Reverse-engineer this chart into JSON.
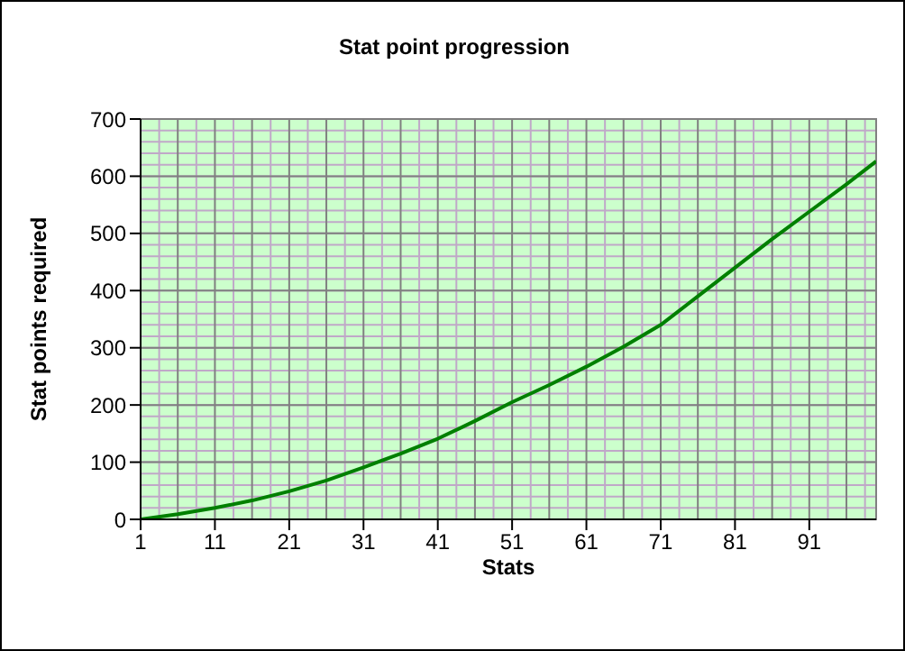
{
  "chart_data": {
    "type": "line",
    "title": "Stat point progression",
    "xlabel": "Stats",
    "ylabel": "Stat points required",
    "x": [
      1,
      6,
      11,
      16,
      21,
      26,
      31,
      36,
      41,
      46,
      51,
      56,
      61,
      66,
      71,
      76,
      81,
      86,
      91,
      96,
      100
    ],
    "series": [
      {
        "color": "#008000",
        "values": [
          0,
          9,
          20,
          33,
          49,
          68,
          91,
          115,
          141,
          172,
          205,
          235,
          267,
          302,
          340,
          390,
          440,
          490,
          538,
          586,
          626
        ]
      }
    ],
    "xlim": [
      1,
      100
    ],
    "xticks": [
      1,
      11,
      21,
      31,
      41,
      51,
      61,
      71,
      81,
      91
    ],
    "ylim": [
      0,
      700
    ],
    "yticks": [
      0,
      100,
      200,
      300,
      400,
      500,
      600,
      700
    ],
    "grid": true,
    "marker": "none",
    "line_style": "solid"
  }
}
